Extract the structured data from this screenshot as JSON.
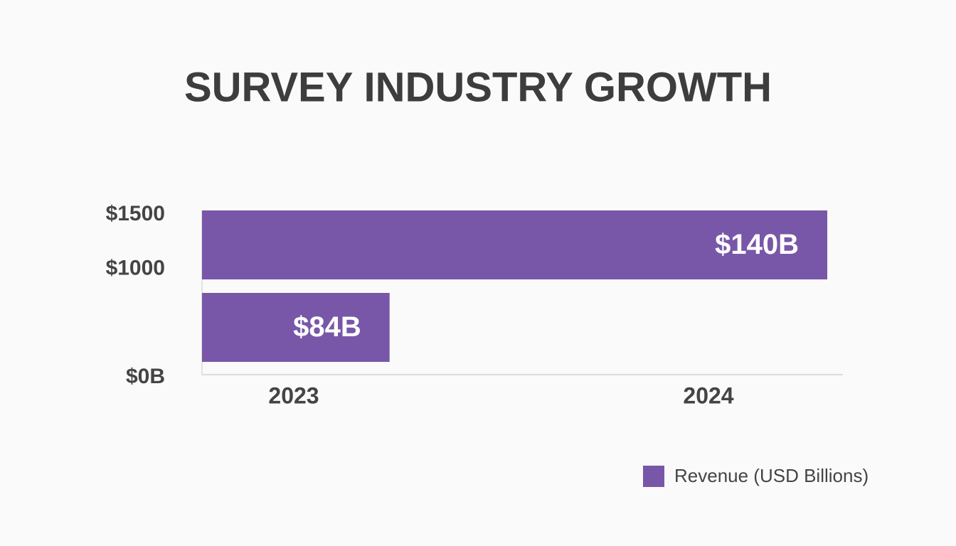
{
  "chart_data": {
    "type": "bar",
    "orientation": "horizontal",
    "title": "SURVEY INDUSTRY GROWTH",
    "categories": [
      "2023",
      "2024"
    ],
    "series": [
      {
        "name": "Revenue (USD Billions)",
        "color": "#7857a8",
        "values": [
          84,
          140
        ],
        "value_labels": [
          "$84B",
          "$140B"
        ]
      }
    ],
    "xlim": [
      60,
      142
    ],
    "ylim": [
      0,
      1500
    ],
    "yticks": [
      {
        "value": 1500,
        "label": "$1500"
      },
      {
        "value": 1000,
        "label": "$1000"
      },
      {
        "value": 0,
        "label": "$0B"
      }
    ],
    "legend": "bottom-right"
  }
}
